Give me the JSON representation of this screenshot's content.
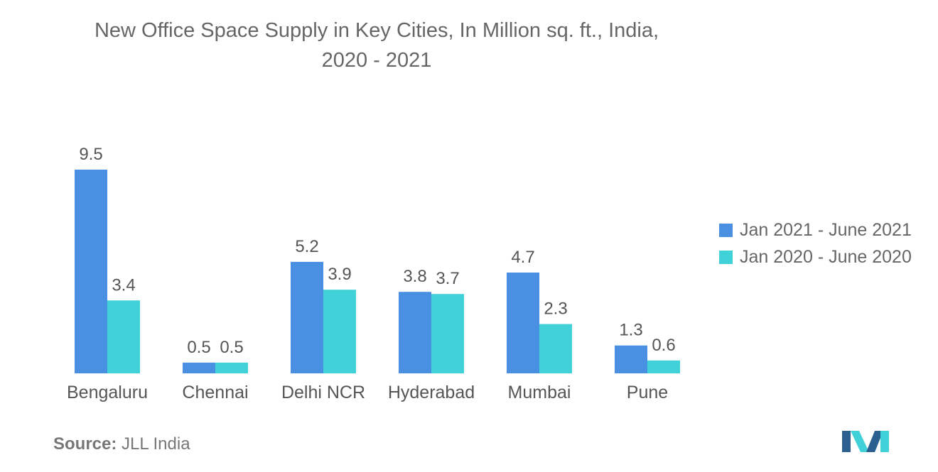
{
  "chart_data": {
    "type": "bar",
    "title_lines": [
      "New Office Space Supply in Key Cities, In Million sq. ft., India,",
      "2020 - 2021"
    ],
    "categories": [
      "Bengaluru",
      "Chennai",
      "Delhi NCR",
      "Hyderabad",
      "Mumbai",
      "Pune"
    ],
    "series": [
      {
        "name": "Jan 2021 - June 2021",
        "values": [
          9.5,
          0.5,
          5.2,
          3.8,
          4.7,
          1.3
        ],
        "labels": [
          "9.5",
          "0.5",
          "5.2",
          "3.8",
          "4.7",
          "1.3"
        ]
      },
      {
        "name": "Jan 2020 - June 2020",
        "values": [
          3.4,
          0.5,
          3.9,
          3.7,
          2.3,
          0.6
        ],
        "labels": [
          "3.4",
          "0.5",
          "3.9",
          "3.7",
          "2.3",
          "0.6"
        ]
      }
    ],
    "colors": [
      "#4a90e2",
      "#41d1d8"
    ],
    "ylim": [
      0,
      9.5
    ],
    "grid": false,
    "legend_position": "right"
  },
  "source": {
    "prefix": "Source:",
    "text": "JLL India"
  },
  "logo": {
    "icon": "mordor-intelligence-logo-icon",
    "colors": [
      "#2a5f8f",
      "#41d1d8"
    ]
  }
}
